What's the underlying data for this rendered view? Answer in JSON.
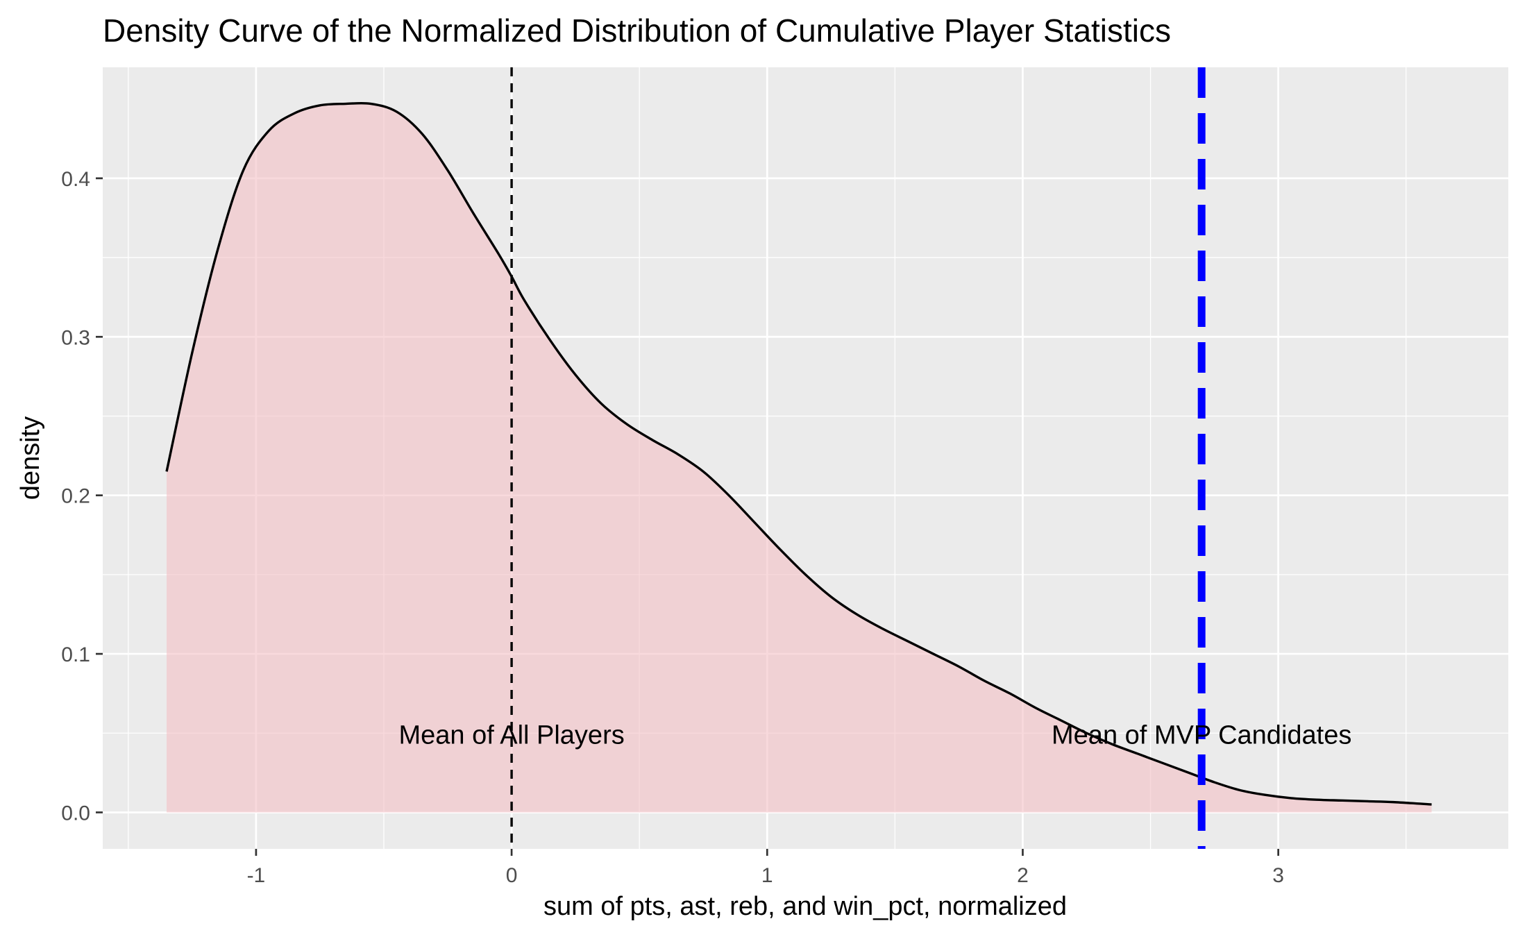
{
  "chart_data": {
    "type": "area",
    "title": "Density Curve of the Normalized Distribution of Cumulative Player Statistics",
    "xlabel": "sum of pts, ast, reb, and win_pct, normalized",
    "ylabel": "density",
    "xlim": [
      -1.6,
      3.9
    ],
    "ylim": [
      -0.023,
      0.47
    ],
    "x_ticks": [
      -1,
      0,
      1,
      2,
      3
    ],
    "x_tick_labels": [
      "-1",
      "0",
      "1",
      "2",
      "3"
    ],
    "y_ticks": [
      0.0,
      0.1,
      0.2,
      0.3,
      0.4
    ],
    "y_tick_labels": [
      "0.0",
      "0.1",
      "0.2",
      "0.3",
      "0.4"
    ],
    "grid": true,
    "legend": "none",
    "series": [
      {
        "x": [
          -1.35,
          -1.25,
          -1.15,
          -1.05,
          -0.95,
          -0.85,
          -0.75,
          -0.65,
          -0.55,
          -0.45,
          -0.35,
          -0.25,
          -0.15,
          -0.05,
          0.0,
          0.05,
          0.15,
          0.25,
          0.35,
          0.45,
          0.55,
          0.65,
          0.75,
          0.85,
          0.95,
          1.05,
          1.15,
          1.25,
          1.35,
          1.45,
          1.55,
          1.65,
          1.75,
          1.85,
          1.95,
          2.05,
          2.15,
          2.25,
          2.35,
          2.45,
          2.55,
          2.65,
          2.75,
          2.85,
          2.95,
          3.05,
          3.15,
          3.25,
          3.35,
          3.45,
          3.6
        ],
        "y": [
          0.215,
          0.29,
          0.355,
          0.405,
          0.43,
          0.441,
          0.446,
          0.447,
          0.447,
          0.442,
          0.428,
          0.405,
          0.378,
          0.352,
          0.338,
          0.323,
          0.298,
          0.276,
          0.258,
          0.245,
          0.235,
          0.226,
          0.215,
          0.2,
          0.183,
          0.166,
          0.15,
          0.136,
          0.125,
          0.116,
          0.108,
          0.1,
          0.092,
          0.083,
          0.075,
          0.066,
          0.058,
          0.05,
          0.043,
          0.037,
          0.031,
          0.025,
          0.019,
          0.014,
          0.011,
          0.009,
          0.008,
          0.0075,
          0.007,
          0.0065,
          0.005
        ]
      }
    ],
    "vlines": [
      {
        "x": 0.0,
        "style": "dashed",
        "color": "#000000"
      },
      {
        "x": 2.7,
        "style": "dashed",
        "color": "#0000ff"
      }
    ],
    "annotations": [
      {
        "text": "Mean of All Players",
        "x": 0.0,
        "y": 0.049
      },
      {
        "text": "Mean of MVP Candidates",
        "x": 2.7,
        "y": 0.049
      }
    ],
    "colors": {
      "fill": "#f4c2c6",
      "panel": "#ebebeb",
      "grid": "#ffffff",
      "curve": "#000000"
    }
  }
}
